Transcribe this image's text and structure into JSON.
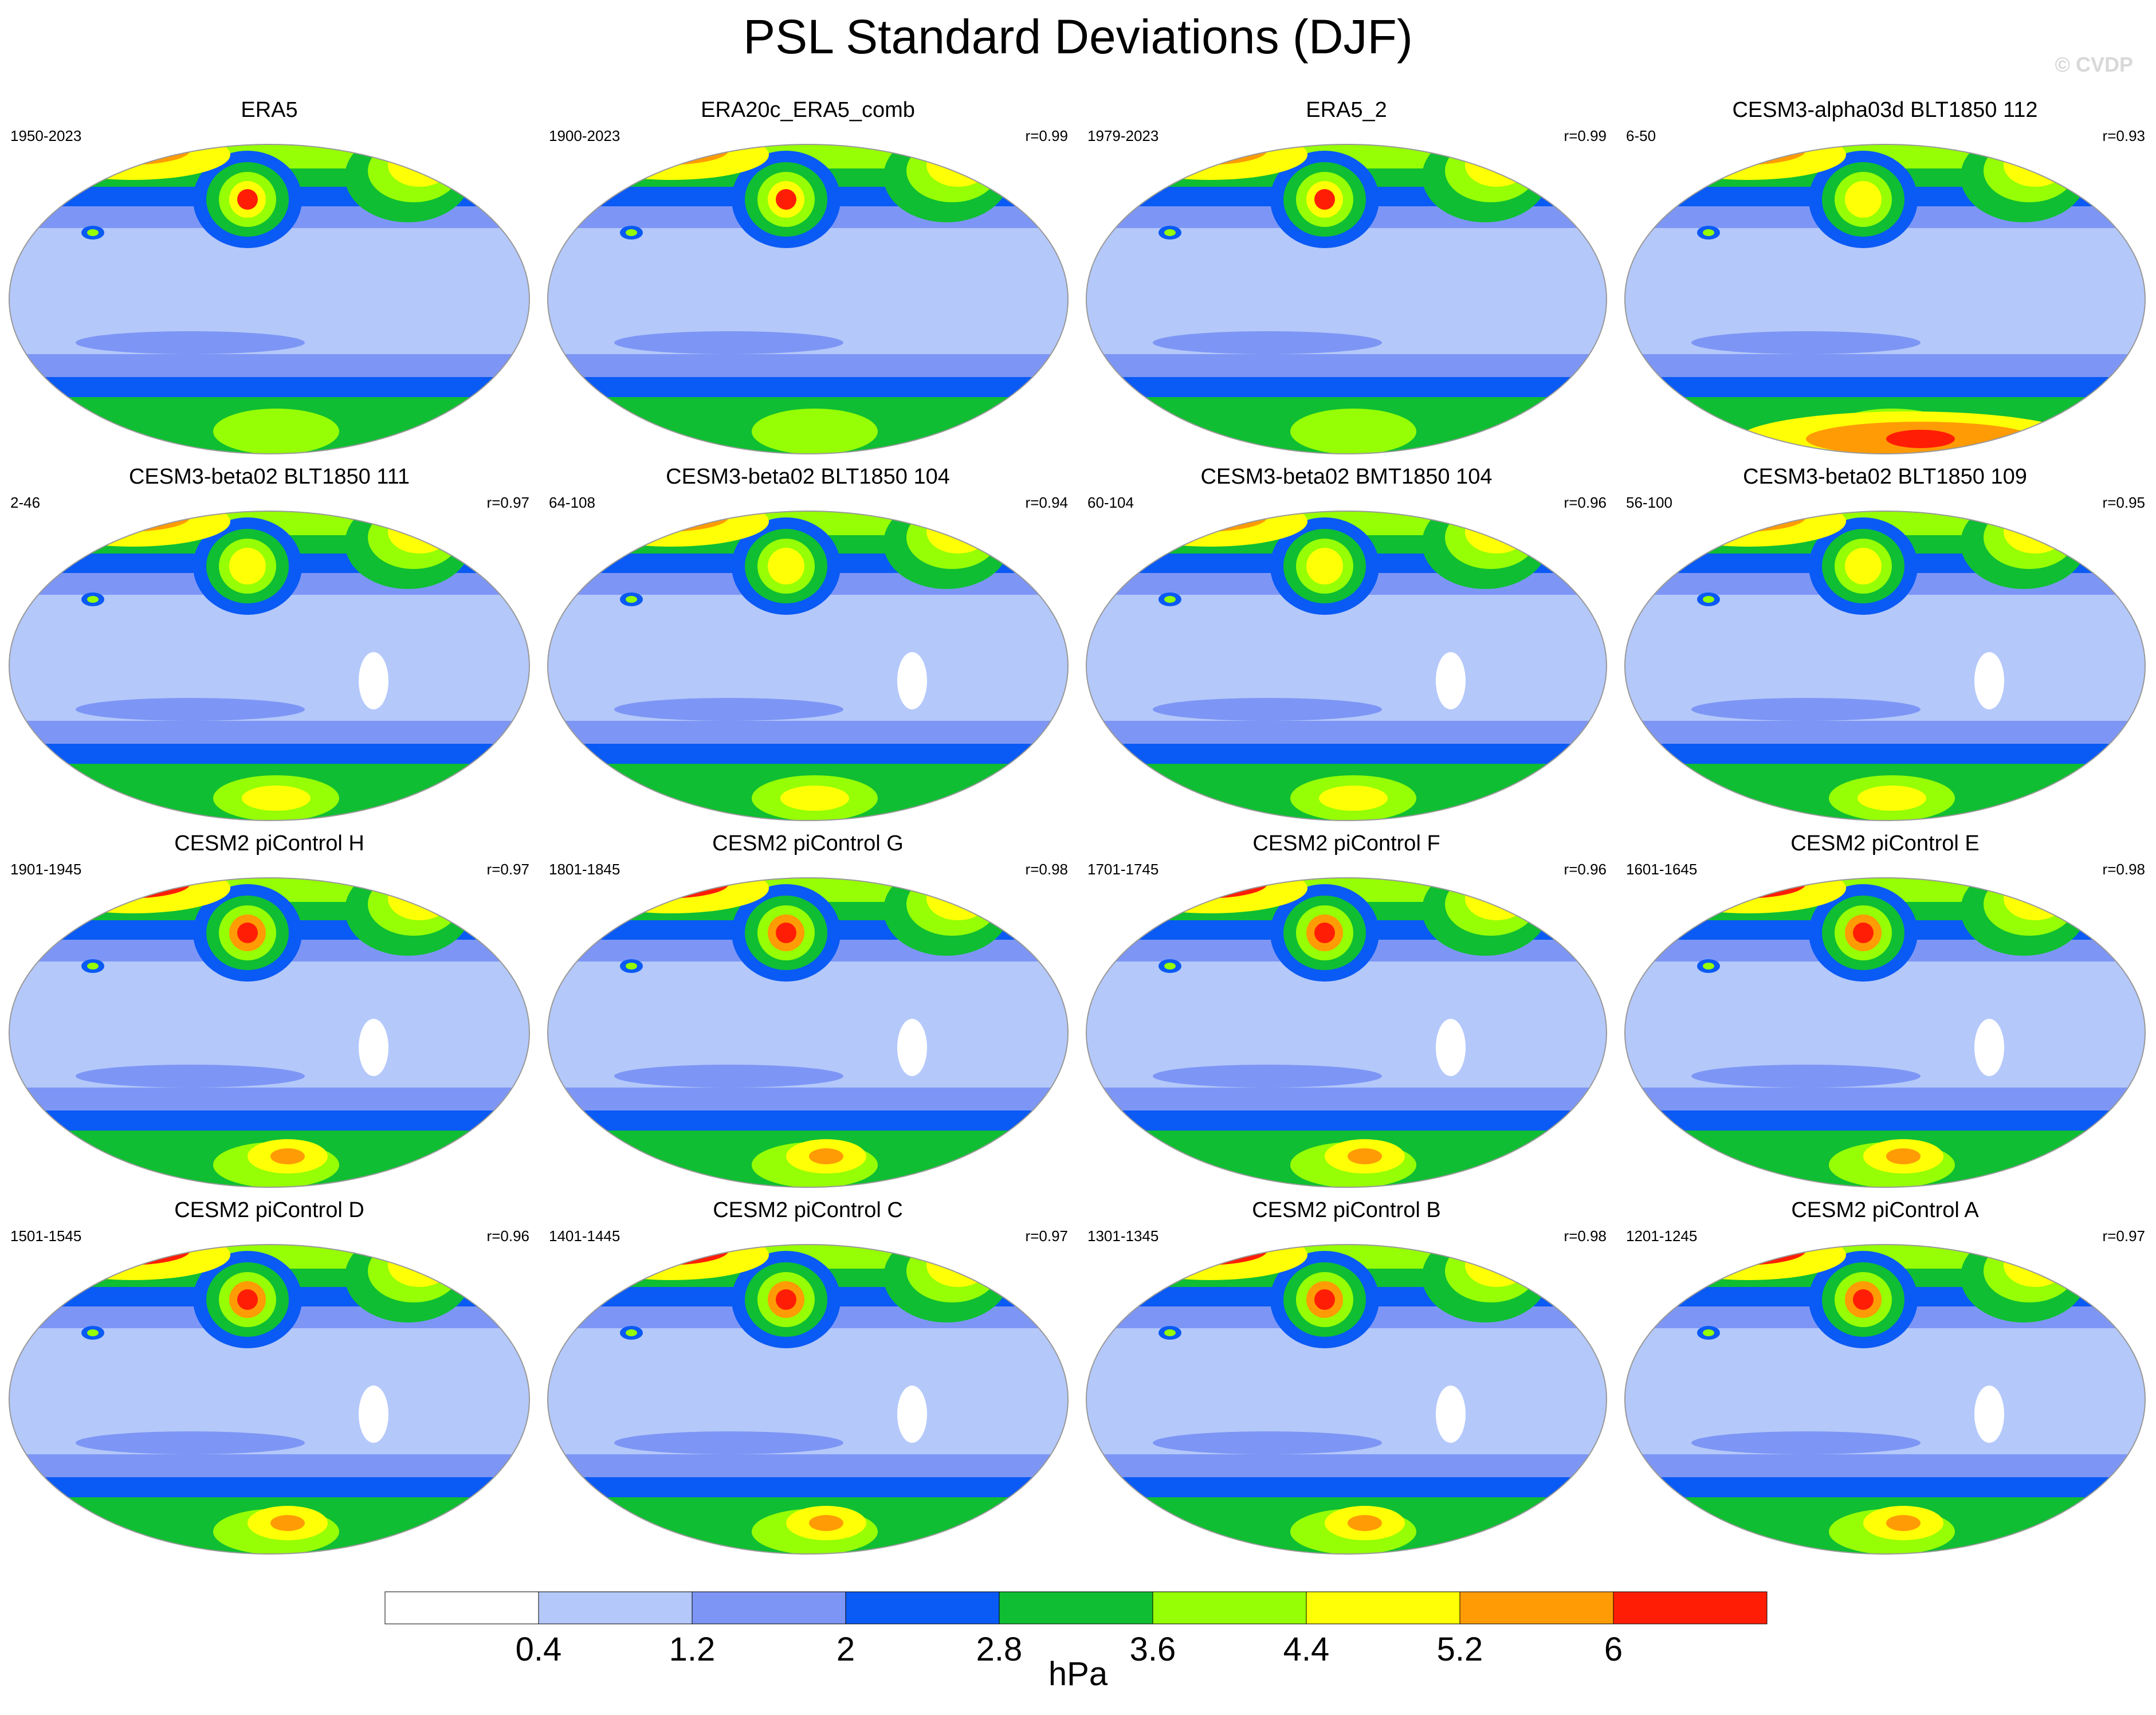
{
  "title": "PSL Standard Deviations (DJF)",
  "credit": "© CVDP",
  "panels": [
    {
      "title": "ERA5",
      "years": "1950-2023",
      "r": "",
      "variant": 0
    },
    {
      "title": "ERA20c_ERA5_comb",
      "years": "1900-2023",
      "r": "r=0.99",
      "variant": 0
    },
    {
      "title": "ERA5_2",
      "years": "1979-2023",
      "r": "r=0.99",
      "variant": 1
    },
    {
      "title": "CESM3-alpha03d BLT1850 112",
      "years": "6-50",
      "r": "r=0.93",
      "variant": 2
    },
    {
      "title": "CESM3-beta02 BLT1850 111",
      "years": "2-46",
      "r": "r=0.97",
      "variant": 3
    },
    {
      "title": "CESM3-beta02 BLT1850 104",
      "years": "64-108",
      "r": "r=0.94",
      "variant": 3
    },
    {
      "title": "CESM3-beta02 BMT1850 104",
      "years": "60-104",
      "r": "r=0.96",
      "variant": 3
    },
    {
      "title": "CESM3-beta02 BLT1850 109",
      "years": "56-100",
      "r": "r=0.95",
      "variant": 3
    },
    {
      "title": "CESM2 piControl H",
      "years": "1901-1945",
      "r": "r=0.97",
      "variant": 4
    },
    {
      "title": "CESM2 piControl G",
      "years": "1801-1845",
      "r": "r=0.98",
      "variant": 4
    },
    {
      "title": "CESM2 piControl F",
      "years": "1701-1745",
      "r": "r=0.96",
      "variant": 4
    },
    {
      "title": "CESM2 piControl E",
      "years": "1601-1645",
      "r": "r=0.98",
      "variant": 4
    },
    {
      "title": "CESM2 piControl D",
      "years": "1501-1545",
      "r": "r=0.96",
      "variant": 5
    },
    {
      "title": "CESM2 piControl C",
      "years": "1401-1445",
      "r": "r=0.97",
      "variant": 5
    },
    {
      "title": "CESM2 piControl B",
      "years": "1301-1345",
      "r": "r=0.98",
      "variant": 5
    },
    {
      "title": "CESM2 piControl A",
      "years": "1201-1245",
      "r": "r=0.97",
      "variant": 5
    }
  ],
  "colorbar": {
    "unit": "hPa",
    "ticks": [
      "0.4",
      "1.2",
      "2",
      "2.8",
      "3.6",
      "4.4",
      "5.2",
      "6"
    ],
    "colors": [
      "#ffffff",
      "#b4c8fa",
      "#7d96f5",
      "#0a5af5",
      "#0fbe32",
      "#96ff05",
      "#ffff05",
      "#ff9b05",
      "#ff1e05"
    ]
  }
}
